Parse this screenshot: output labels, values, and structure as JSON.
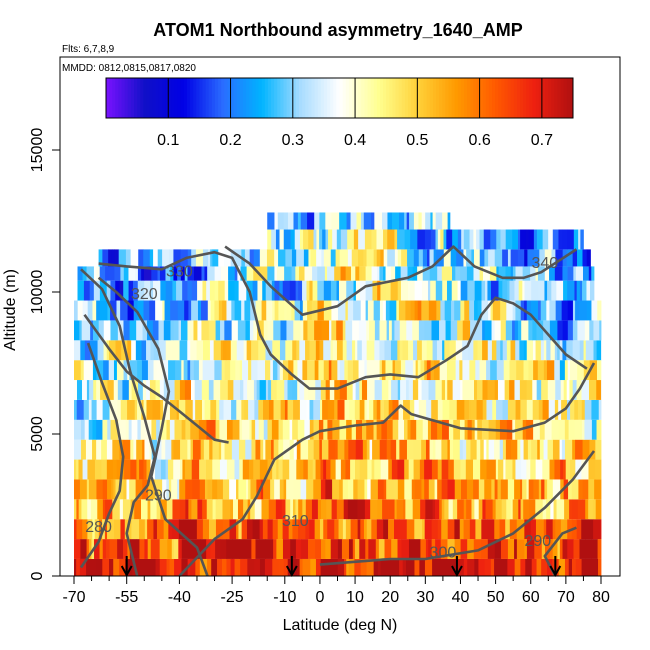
{
  "chart_data": {
    "type": "heatmap",
    "title": "ATOM1 Northbound asymmetry_1640_AMP",
    "flights_note": "Flts: 6,7,8,9",
    "dates_note": "MMDD: 0812,0815,0817,0820",
    "xlabel": "Latitude (deg N)",
    "ylabel": "Altitude (m)",
    "xlim": [
      -70,
      80
    ],
    "ylim": [
      0,
      17500
    ],
    "x_ticks": [
      -70,
      -55,
      -40,
      -25,
      -10,
      0,
      10,
      20,
      30,
      40,
      50,
      60,
      70,
      80
    ],
    "x_minor_ticks": [
      -65,
      -60,
      -50,
      -45,
      -35,
      -30,
      -20,
      -15,
      -5,
      5,
      15,
      25,
      35,
      45,
      55,
      65,
      75
    ],
    "y_ticks": [
      0,
      5000,
      10000,
      15000
    ],
    "colorbar": {
      "ticks": [
        "0.1",
        "0.2",
        "0.3",
        "0.4",
        "0.5",
        "0.6",
        "0.7"
      ],
      "tick_values": [
        0.1,
        0.2,
        0.3,
        0.4,
        0.5,
        0.6,
        0.7
      ],
      "range": [
        0.0,
        0.75
      ]
    },
    "color_scale": [
      "#7a12ff",
      "#1010c8",
      "#0000e6",
      "#2a6cff",
      "#00b4ff",
      "#a8dcff",
      "#ffffff",
      "#ffff90",
      "#ffd23a",
      "#ff9a00",
      "#ff5a00",
      "#ee2010",
      "#b01010"
    ],
    "altitude_layers": [
      {
        "bottom": 0,
        "top": 600,
        "lat_min": -70,
        "lat_max": 80,
        "mean": 0.67
      },
      {
        "bottom": 600,
        "top": 1300,
        "lat_min": -70,
        "lat_max": 80,
        "mean": 0.64
      },
      {
        "bottom": 1300,
        "top": 2000,
        "lat_min": -70,
        "lat_max": 80,
        "mean": 0.6
      },
      {
        "bottom": 2000,
        "top": 2700,
        "lat_min": -70,
        "lat_max": 80,
        "mean": 0.55
      },
      {
        "bottom": 2700,
        "top": 3400,
        "lat_min": -70,
        "lat_max": 80,
        "mean": 0.52
      },
      {
        "bottom": 3400,
        "top": 4100,
        "lat_min": -70,
        "lat_max": 80,
        "mean": 0.5
      },
      {
        "bottom": 4100,
        "top": 4800,
        "lat_min": -70,
        "lat_max": 80,
        "mean": 0.48
      },
      {
        "bottom": 4800,
        "top": 5500,
        "lat_min": -70,
        "lat_max": 80,
        "mean": 0.47
      },
      {
        "bottom": 5500,
        "top": 6200,
        "lat_min": -70,
        "lat_max": 80,
        "mean": 0.46
      },
      {
        "bottom": 6200,
        "top": 6900,
        "lat_min": -70,
        "lat_max": 80,
        "mean": 0.46
      },
      {
        "bottom": 6900,
        "top": 7600,
        "lat_min": -70,
        "lat_max": 80,
        "mean": 0.45
      },
      {
        "bottom": 7600,
        "top": 8300,
        "lat_min": -70,
        "lat_max": 80,
        "mean": 0.44
      },
      {
        "bottom": 8300,
        "top": 9000,
        "lat_min": -70,
        "lat_max": 80,
        "mean": 0.43
      },
      {
        "bottom": 9000,
        "top": 9700,
        "lat_min": -70,
        "lat_max": 80,
        "mean": 0.42
      },
      {
        "bottom": 9700,
        "top": 10400,
        "lat_min": -69,
        "lat_max": 78,
        "mean": 0.41
      },
      {
        "bottom": 10400,
        "top": 10900,
        "lat_min": -69,
        "lat_max": 78,
        "mean": 0.4
      },
      {
        "bottom": 10900,
        "top": 11500,
        "lat_min": -63,
        "lat_max": 77,
        "mean": 0.38
      },
      {
        "bottom": 11500,
        "top": 12200,
        "lat_min": -15,
        "lat_max": 75,
        "mean": 0.36
      },
      {
        "bottom": 12200,
        "top": 12800,
        "lat_min": -15,
        "lat_max": 37,
        "mean": 0.35
      }
    ],
    "potential_temperature_contours": [
      {
        "label": "280",
        "points": [
          [
            -68,
            300
          ],
          [
            -63,
            1200
          ],
          [
            -60,
            2200
          ],
          [
            -57,
            3000
          ],
          [
            -56,
            4200
          ],
          [
            -58,
            5500
          ],
          [
            -62,
            6800
          ],
          [
            -66,
            8200
          ]
        ],
        "label_at": [
          -63,
          1700
        ]
      },
      {
        "label": "290",
        "points": [
          [
            -52,
            0
          ],
          [
            -55,
            1500
          ],
          [
            -53,
            2600
          ],
          [
            -49,
            3200
          ],
          [
            -47,
            4200
          ],
          [
            -50,
            5600
          ],
          [
            -54,
            7200
          ],
          [
            -57,
            8800
          ],
          [
            -62,
            10100
          ],
          [
            -68,
            10800
          ]
        ],
        "label_at": [
          -46,
          2800
        ]
      },
      {
        "label": "290",
        "points": [
          [
            67,
            0
          ],
          [
            64,
            700
          ],
          [
            69,
            1500
          ],
          [
            73,
            1700
          ]
        ],
        "label_at": [
          62,
          1200
        ]
      },
      {
        "label": "300",
        "points": [
          [
            -32,
            0
          ],
          [
            -35,
            1000
          ],
          [
            -44,
            2000
          ],
          [
            -48,
            3500
          ],
          [
            -45,
            5200
          ],
          [
            -43,
            6500
          ],
          [
            -46,
            8000
          ],
          [
            -52,
            9300
          ],
          [
            -58,
            10000
          ],
          [
            -63,
            10500
          ]
        ],
        "label_at": [
          35,
          800
        ]
      },
      {
        "label": "300",
        "points": [
          [
            0,
            400
          ],
          [
            20,
            600
          ],
          [
            30,
            600
          ],
          [
            45,
            900
          ],
          [
            55,
            1500
          ],
          [
            64,
            2400
          ],
          [
            72,
            3400
          ],
          [
            78,
            4400
          ]
        ]
      },
      {
        "label": "310",
        "points": [
          [
            -40,
            0
          ],
          [
            -30,
            1300
          ],
          [
            -22,
            2000
          ],
          [
            -18,
            2800
          ],
          [
            -13,
            4100
          ],
          [
            -5,
            4800
          ],
          [
            0,
            5100
          ],
          [
            10,
            5300
          ],
          [
            18,
            5400
          ],
          [
            23,
            6000
          ],
          [
            26,
            5700
          ],
          [
            40,
            5200
          ],
          [
            55,
            5100
          ],
          [
            64,
            5400
          ],
          [
            70,
            5900
          ],
          [
            74,
            6600
          ],
          [
            78,
            7500
          ]
        ],
        "label_at": [
          -7,
          1900
        ]
      },
      {
        "label": "320",
        "points": [
          [
            -67,
            9200
          ],
          [
            -60,
            8000
          ],
          [
            -55,
            7200
          ],
          [
            -50,
            6700
          ],
          [
            -45,
            6300
          ],
          [
            -40,
            5800
          ],
          [
            -35,
            5300
          ],
          [
            -30,
            4800
          ],
          [
            -26,
            4700
          ]
        ],
        "label_at": [
          -50,
          9900
        ]
      },
      {
        "label": "330",
        "points": [
          [
            -63,
            11000
          ],
          [
            -55,
            10900
          ],
          [
            -45,
            10800
          ],
          [
            -38,
            11200
          ],
          [
            -30,
            11400
          ],
          [
            -25,
            11200
          ],
          [
            -20,
            10000
          ],
          [
            -17,
            8500
          ],
          [
            -14,
            7800
          ],
          [
            -8,
            7100
          ],
          [
            -3,
            6600
          ],
          [
            5,
            6600
          ],
          [
            13,
            7000
          ],
          [
            20,
            7100
          ],
          [
            28,
            7000
          ],
          [
            36,
            7600
          ],
          [
            42,
            8100
          ],
          [
            46,
            9200
          ],
          [
            50,
            9800
          ],
          [
            55,
            9600
          ],
          [
            60,
            9200
          ],
          [
            65,
            8500
          ],
          [
            70,
            7800
          ],
          [
            76,
            7300
          ]
        ],
        "label_at": [
          -40,
          10700
        ]
      },
      {
        "label": "340",
        "points": [
          [
            -27,
            11600
          ],
          [
            -20,
            11000
          ],
          [
            -14,
            10200
          ],
          [
            -5,
            9200
          ],
          [
            5,
            9500
          ],
          [
            13,
            10200
          ],
          [
            25,
            10500
          ],
          [
            32,
            10900
          ],
          [
            38,
            11600
          ],
          [
            44,
            10900
          ],
          [
            52,
            10500
          ],
          [
            58,
            10500
          ],
          [
            63,
            10700
          ],
          [
            68,
            11100
          ],
          [
            73,
            11500
          ]
        ],
        "label_at": [
          64,
          11000
        ]
      }
    ],
    "flight_markers_lat": [
      -55,
      -8,
      39,
      67
    ]
  }
}
